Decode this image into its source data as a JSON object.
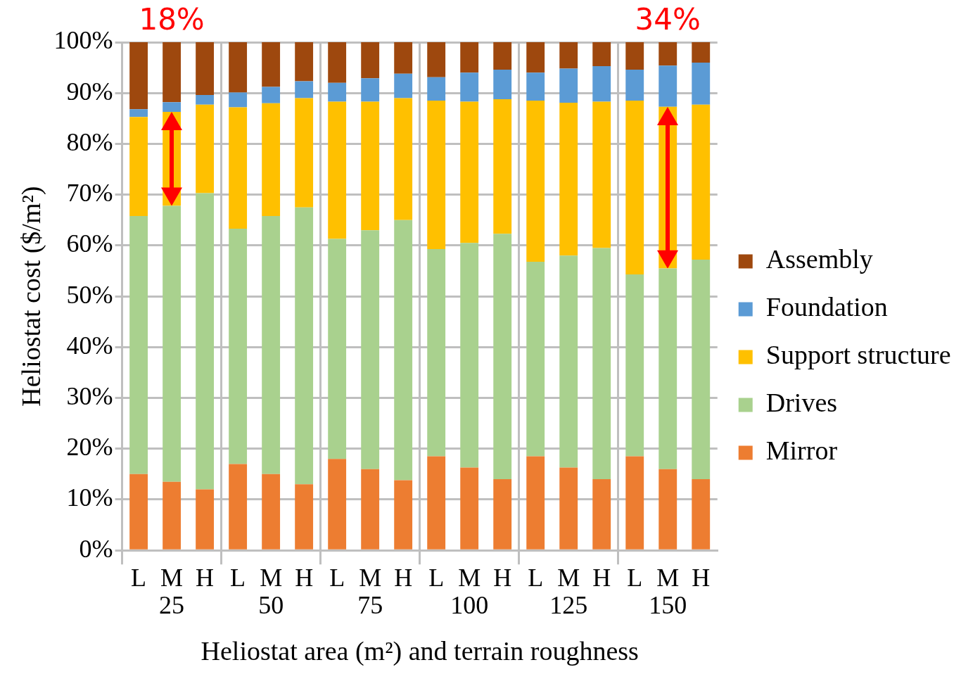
{
  "chart_data": {
    "type": "bar",
    "stacked": true,
    "xlabel": "Heliostat area (m²) and terrain roughness",
    "ylabel": "Heliostat cost ($/m²)",
    "categories": [
      "L",
      "M",
      "H",
      "L",
      "M",
      "H",
      "L",
      "M",
      "H",
      "L",
      "M",
      "H",
      "L",
      "M",
      "H",
      "L",
      "M",
      "H"
    ],
    "series": [
      {
        "name": "Mirror",
        "color": "#ed7d31",
        "values": [
          15,
          13.5,
          12,
          17,
          15,
          13,
          18,
          16,
          13.8,
          18.5,
          16.3,
          14,
          18.5,
          16.3,
          14,
          18.5,
          16,
          14
        ]
      },
      {
        "name": "Drives",
        "color": "#a9d18e",
        "values": [
          50.8,
          54.3,
          58.3,
          46.3,
          50.8,
          54.5,
          43.3,
          47,
          51.2,
          40.8,
          44.2,
          48.3,
          38.3,
          41.7,
          45.5,
          35.8,
          39.5,
          43.2
        ]
      },
      {
        "name": "Support structure",
        "color": "#ffc000",
        "values": [
          19.5,
          18.5,
          17.4,
          23.9,
          22.2,
          21.5,
          27,
          25.3,
          24,
          29.2,
          27.8,
          26.5,
          31.7,
          30.1,
          28.8,
          34.2,
          31.8,
          30.5
        ]
      },
      {
        "name": "Foundation",
        "color": "#5b9bd5",
        "values": [
          1.5,
          1.9,
          1.9,
          2.9,
          3.2,
          3.3,
          3.7,
          4.6,
          4.8,
          4.6,
          5.7,
          5.8,
          5.5,
          6.7,
          7,
          6.1,
          8.1,
          8.3
        ]
      },
      {
        "name": "Assembly",
        "color": "#9e480e",
        "values": [
          13.2,
          11.8,
          10.4,
          9.9,
          8.8,
          7.7,
          8,
          7.1,
          6.2,
          6.9,
          6,
          5.4,
          6,
          5.2,
          4.7,
          5.4,
          4.6,
          4
        ]
      }
    ],
    "ylim": [
      0,
      100
    ],
    "yticks": [
      {
        "value": 0,
        "label": "0%"
      },
      {
        "value": 10,
        "label": "10%"
      },
      {
        "value": 20,
        "label": "20%"
      },
      {
        "value": 30,
        "label": "30%"
      },
      {
        "value": 40,
        "label": "40%"
      },
      {
        "value": 50,
        "label": "50%"
      },
      {
        "value": 60,
        "label": "60%"
      },
      {
        "value": 70,
        "label": "70%"
      },
      {
        "value": 80,
        "label": "80%"
      },
      {
        "value": 90,
        "label": "90%"
      },
      {
        "value": 100,
        "label": "100%"
      }
    ],
    "grid": true,
    "legend": "right",
    "annotations": [
      "25",
      "50",
      "75",
      "100",
      "125",
      "150",
      "18%",
      "34%"
    ]
  }
}
